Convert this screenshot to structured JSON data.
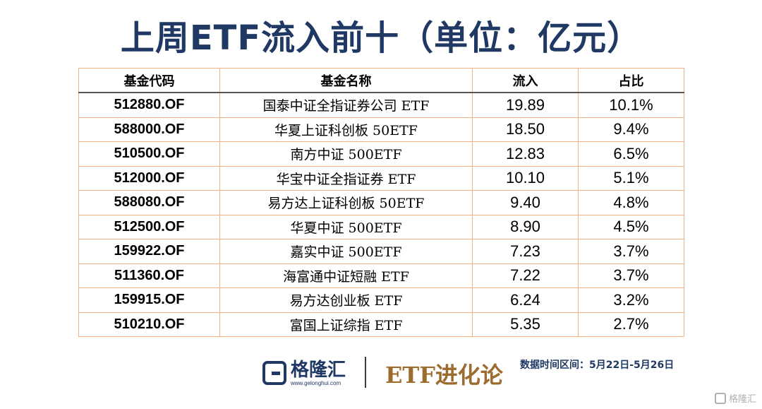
{
  "title": "上周ETF流入前十（单位：亿元）",
  "table": {
    "headers": [
      "基金代码",
      "基金名称",
      "流入",
      "占比"
    ],
    "rows": [
      [
        "512880.OF",
        "国泰中证全指证券公司 ETF",
        "19.89",
        "10.1%"
      ],
      [
        "588000.OF",
        "华夏上证科创板 50ETF",
        "18.50",
        "9.4%"
      ],
      [
        "510500.OF",
        "南方中证 500ETF",
        "12.83",
        "6.5%"
      ],
      [
        "512000.OF",
        "华宝中证全指证券 ETF",
        "10.10",
        "5.1%"
      ],
      [
        "588080.OF",
        "易方达上证科创板 50ETF",
        "9.40",
        "4.8%"
      ],
      [
        "512500.OF",
        "华夏中证 500ETF",
        "8.90",
        "4.5%"
      ],
      [
        "159922.OF",
        "嘉实中证 500ETF",
        "7.23",
        "3.7%"
      ],
      [
        "511360.OF",
        "海富通中证短融 ETF",
        "7.22",
        "3.7%"
      ],
      [
        "159915.OF",
        "易方达创业板 ETF",
        "6.24",
        "3.2%"
      ],
      [
        "510210.OF",
        "富国上证综指 ETF",
        "5.35",
        "2.7%"
      ]
    ]
  },
  "footer": {
    "logo_text": "格隆汇",
    "logo_url": "www.gelonghui.com",
    "brand": "ETF进化论",
    "date_range": "数据时间区间：5月22日-5月26日"
  },
  "watermark": "格隆汇",
  "colors": {
    "title": "#1f3864",
    "border": "#f4b183",
    "brand": "#9c6b2e"
  }
}
